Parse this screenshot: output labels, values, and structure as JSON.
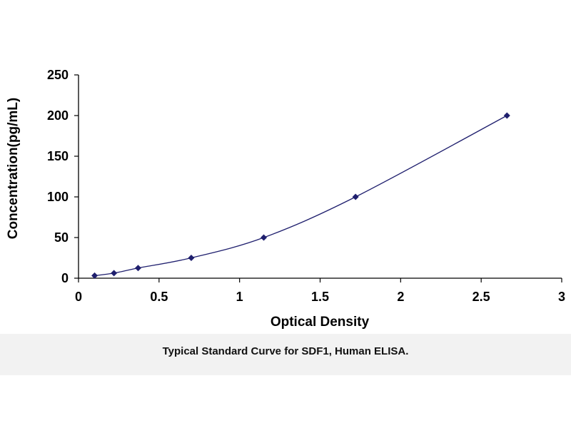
{
  "chart_data": {
    "type": "scatter",
    "line": "smooth",
    "title": "",
    "xlabel": "Optical Density",
    "ylabel": "Concentration(pg/mL)",
    "xlim": [
      0,
      3
    ],
    "ylim": [
      0,
      250
    ],
    "xticks": [
      "0",
      "0.5",
      "1",
      "1.5",
      "2",
      "2.5",
      "3"
    ],
    "yticks": [
      "0",
      "50",
      "100",
      "150",
      "200",
      "250"
    ],
    "grid": false,
    "legend": "none",
    "series": [
      {
        "x": [
          0.1,
          0.22,
          0.37,
          0.7,
          1.15,
          1.72,
          2.66
        ],
        "y": [
          3.13,
          6.25,
          12.5,
          25,
          50,
          100,
          200
        ]
      }
    ],
    "colors": {
      "series": "#1f1f6e",
      "axis": "#000000"
    }
  },
  "caption": "Typical Standard Curve for SDF1, Human ELISA."
}
